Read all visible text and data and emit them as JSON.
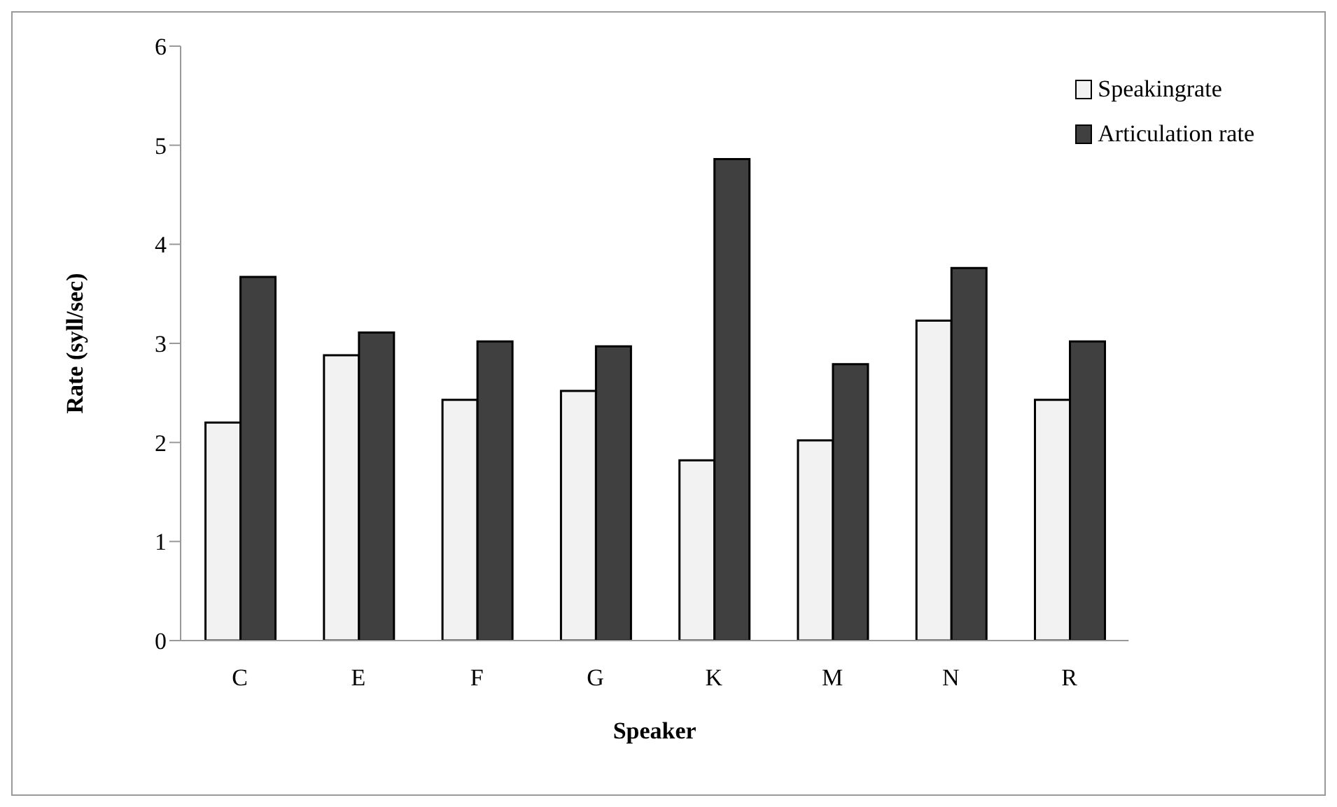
{
  "chart_data": {
    "type": "bar",
    "xlabel": "Speaker",
    "ylabel": "Rate (syll/sec)",
    "categories": [
      "C",
      "E",
      "F",
      "G",
      "K",
      "M",
      "N",
      "R"
    ],
    "series": [
      {
        "name": "Speakingrate",
        "color": "#f2f2f2",
        "values": [
          2.2,
          2.88,
          2.43,
          2.52,
          1.82,
          2.02,
          3.23,
          2.43
        ]
      },
      {
        "name": "Articulation rate",
        "color": "#404040",
        "values": [
          3.67,
          3.11,
          3.02,
          2.97,
          4.86,
          2.79,
          3.76,
          3.02
        ]
      }
    ],
    "ylim": [
      0,
      6
    ],
    "yticks": [
      0,
      1,
      2,
      3,
      4,
      5,
      6
    ],
    "grid": false,
    "legend": "top right"
  }
}
